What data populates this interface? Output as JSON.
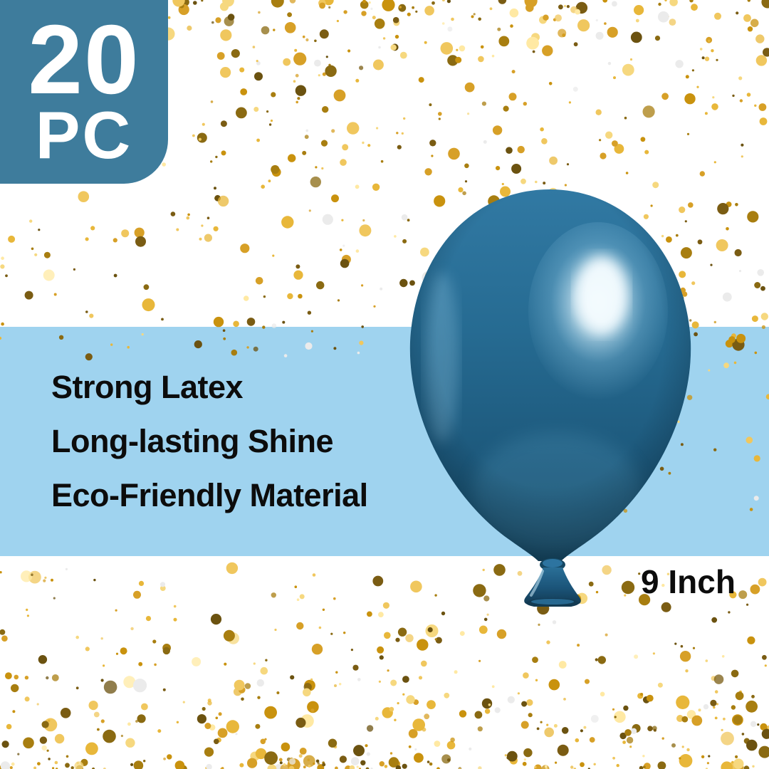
{
  "badge": {
    "count": "20",
    "unit": "PC",
    "bg_color": "#3e7c9c",
    "text_color": "#ffffff"
  },
  "features": {
    "band_color": "#9fd3ef",
    "text_color": "#0c0c0c",
    "items": [
      "Strong Latex",
      "Long-lasting Shine",
      "Eco-Friendly Material"
    ]
  },
  "size_label": "9 Inch",
  "balloon": {
    "description": "metallic chrome blue latex balloon with knot",
    "colors": {
      "body_light": "#3179a3",
      "body_mid": "#226a92",
      "body_dark": "#174963",
      "edge_shadow": "#0e3148",
      "highlight": "#f4fcff"
    }
  },
  "confetti": {
    "background_color": "#ffffff",
    "palette": [
      {
        "color": "#6b5210",
        "w": 0.09
      },
      {
        "color": "#7a5c13",
        "w": 0.08
      },
      {
        "color": "#8a6a12",
        "w": 0.07
      },
      {
        "color": "#a87e10",
        "w": 0.1
      },
      {
        "color": "#c9920e",
        "w": 0.12
      },
      {
        "color": "#d7a027",
        "w": 0.12
      },
      {
        "color": "#e8b73a",
        "w": 0.12
      },
      {
        "color": "#f0c75e",
        "w": 0.11
      },
      {
        "color": "#f6d87f",
        "w": 0.08
      },
      {
        "color": "#ffe9a3",
        "w": 0.05
      },
      {
        "color": "#ebebeb",
        "w": 0.06
      }
    ]
  }
}
